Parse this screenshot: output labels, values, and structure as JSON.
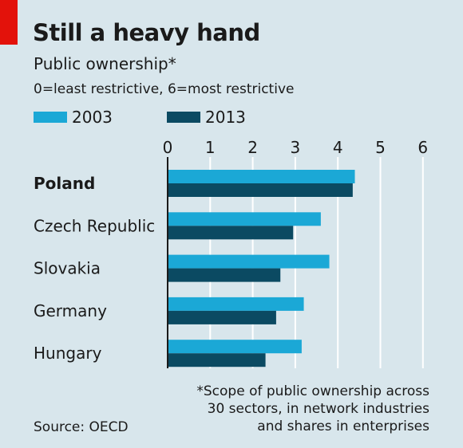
{
  "header": {
    "title": "Still a heavy hand",
    "subtitle": "Public ownership*",
    "scale_note": "0=least restrictive, 6=most restrictive"
  },
  "colors": {
    "series_2003": "#1ba8d6",
    "series_2013": "#0b4a62",
    "background": "#d8e6ec",
    "accent_red": "#e3120b"
  },
  "chart_data": {
    "type": "bar",
    "orientation": "horizontal",
    "categories": [
      "Poland",
      "Czech Republic",
      "Slovakia",
      "Germany",
      "Hungary"
    ],
    "highlighted_category": "Poland",
    "series": [
      {
        "name": "2003",
        "values": [
          4.4,
          3.6,
          3.8,
          3.2,
          3.15
        ]
      },
      {
        "name": "2013",
        "values": [
          4.35,
          2.95,
          2.65,
          2.55,
          2.3
        ]
      }
    ],
    "x_ticks": [
      0,
      1,
      2,
      3,
      4,
      5,
      6
    ],
    "xlim": [
      0,
      6
    ],
    "grid": true,
    "legend_position": "top"
  },
  "footnote": {
    "lines": [
      "*Scope of public ownership across",
      "30 sectors, in network industries",
      "and shares in enterprises"
    ]
  },
  "source": "Source: OECD"
}
